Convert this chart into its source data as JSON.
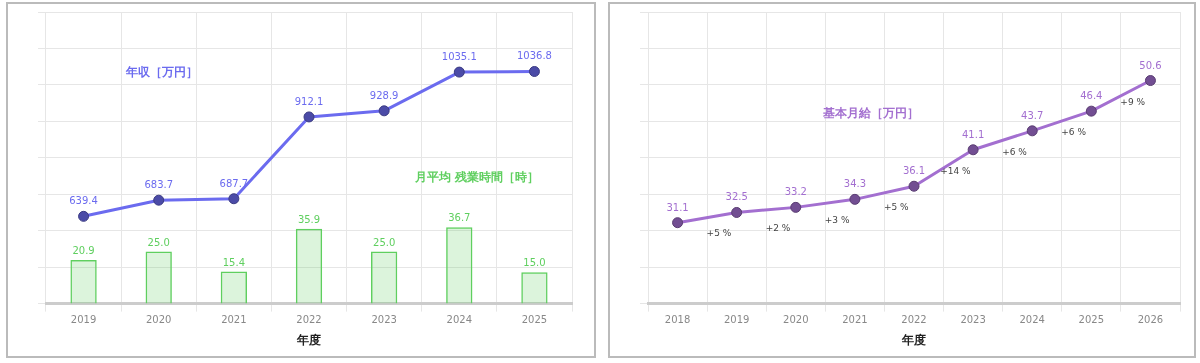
{
  "chart_data": [
    {
      "type": "line",
      "xlabel": "年度",
      "categories": [
        "2019",
        "2020",
        "2021",
        "2022",
        "2023",
        "2024",
        "2025"
      ],
      "series": [
        {
          "name": "年収［万円］",
          "color": "#6b6bef",
          "values": [
            639.4,
            683.7,
            687.7,
            912.1,
            928.9,
            1035.1,
            1036.8
          ]
        },
        {
          "name": "月平均 残業時間［時］",
          "type": "bar",
          "axis": "y2",
          "color": "#5fcf5f",
          "values": [
            20.9,
            25.0,
            15.4,
            35.9,
            25.0,
            36.7,
            15.0
          ],
          "value_labels": [
            "20.9",
            "25.0",
            "15.4",
            "35.9",
            "25.0",
            "36.7",
            "15.0"
          ]
        }
      ],
      "ylim": [
        400,
        1200
      ],
      "yticks": [
        {
          "value": 400,
          "label": null
        },
        {
          "value": 500,
          "label": null
        },
        {
          "value": 600,
          "label": null
        },
        {
          "value": 700,
          "label": null
        },
        {
          "value": 800,
          "label": null
        },
        {
          "value": 900,
          "label": null
        },
        {
          "value": 1000,
          "label": null
        },
        {
          "value": 1100,
          "label": null
        },
        {
          "value": 1200,
          "label": null
        }
      ],
      "grid": true,
      "legend": false,
      "marker": "circle",
      "data_labels": true,
      "tick_labels": "x"
    },
    {
      "type": "line",
      "xlabel": "年度",
      "categories": [
        "2018",
        "2019",
        "2020",
        "2021",
        "2022",
        "2023",
        "2024",
        "2025",
        "2026"
      ],
      "series": [
        {
          "name": "基本月給［万円］",
          "color": "#a36fd0",
          "values": [
            31.1,
            32.5,
            33.2,
            34.3,
            36.1,
            41.1,
            43.7,
            46.4,
            50.6
          ]
        }
      ],
      "ylim": [
        20,
        60
      ],
      "yticks": [
        {
          "value": 20,
          "label": null
        },
        {
          "value": 25,
          "label": null
        },
        {
          "value": 30,
          "label": null
        },
        {
          "value": 35,
          "label": null
        },
        {
          "value": 40,
          "label": null
        },
        {
          "value": 45,
          "label": null
        },
        {
          "value": 50,
          "label": null
        },
        {
          "value": 55,
          "label": null
        },
        {
          "value": 60,
          "label": null
        }
      ],
      "annotations": [
        {
          "text": "+5 %",
          "x": "2019",
          "y": 32.5
        },
        {
          "text": "+2 %",
          "x": "2020",
          "y": 33.2
        },
        {
          "text": "+3 %",
          "x": "2021",
          "y": 34.3
        },
        {
          "text": "+5 %",
          "x": "2022",
          "y": 36.1
        },
        {
          "text": "+14 %",
          "x": "2023",
          "y": 41.1
        },
        {
          "text": "+6 %",
          "x": "2024",
          "y": 43.7
        },
        {
          "text": "+6 %",
          "x": "2025",
          "y": 46.4
        },
        {
          "text": "+9 %",
          "x": "2026",
          "y": 50.6
        }
      ],
      "grid": true,
      "legend": false,
      "marker": "circle",
      "data_labels": true,
      "tick_labels": "x"
    }
  ]
}
